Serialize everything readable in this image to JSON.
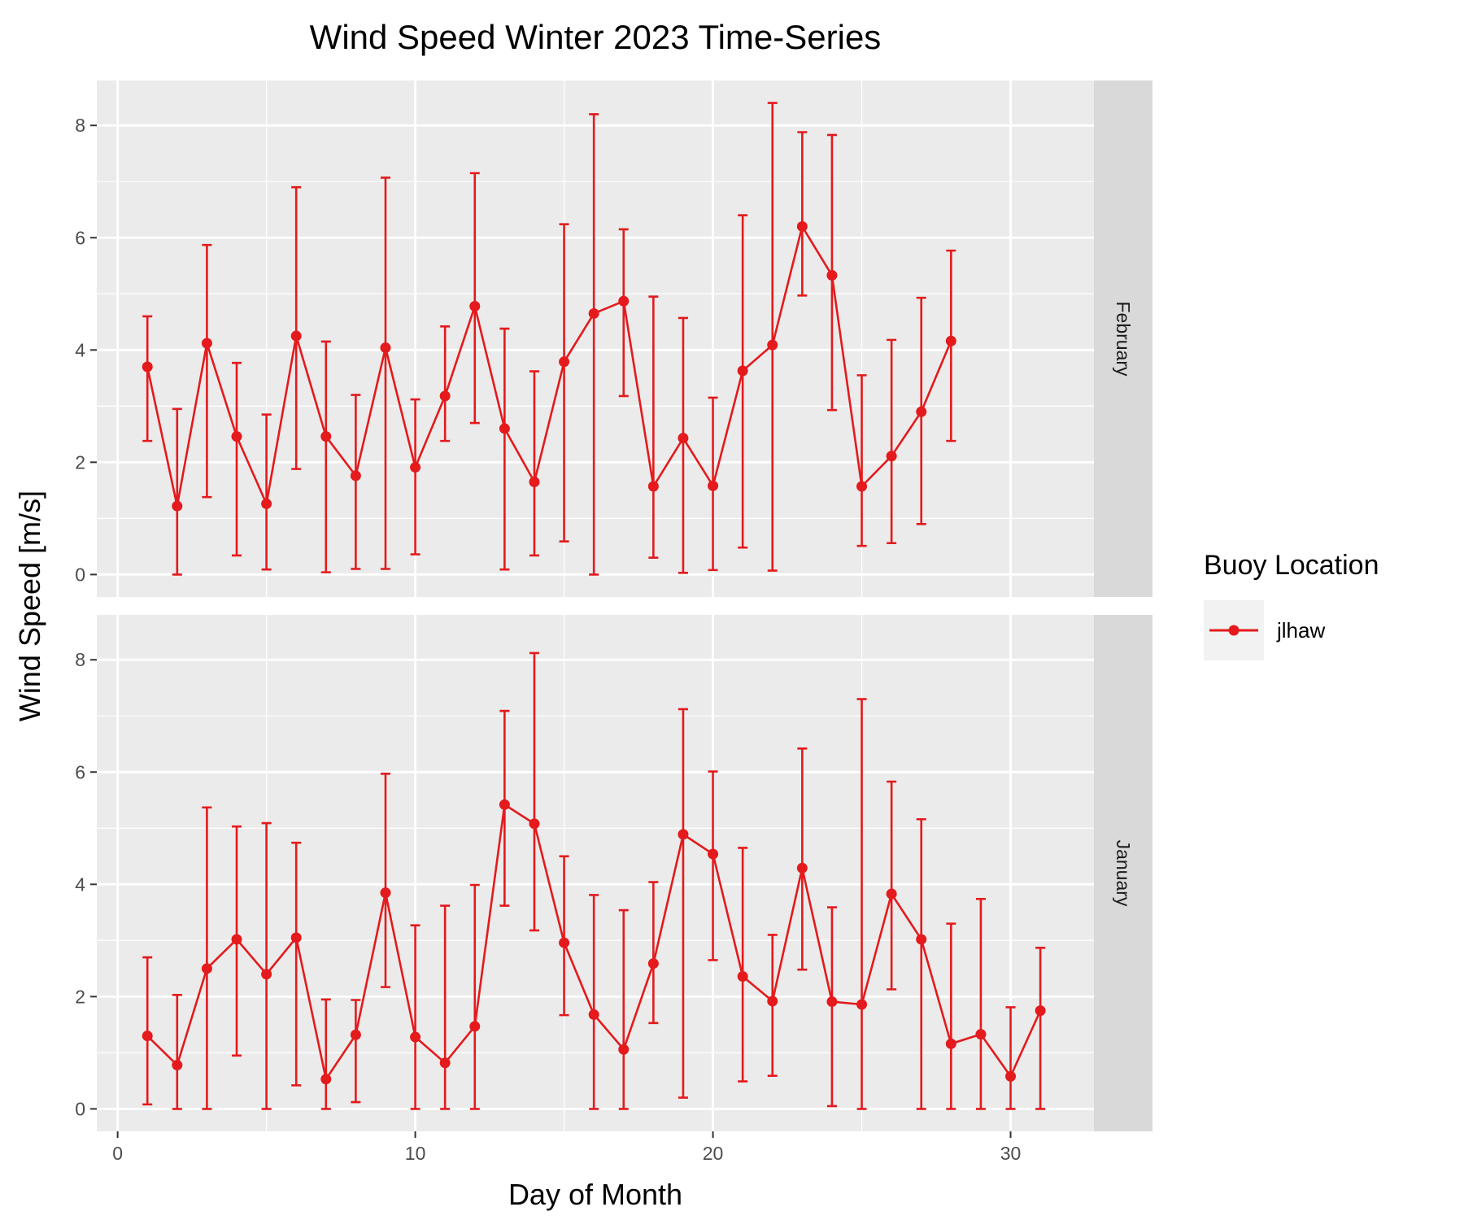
{
  "chart_data": {
    "type": "line",
    "title": "Wind Speed Winter 2023 Time-Series",
    "xlabel": "Day of Month",
    "ylabel": "Wind Speed [m/s]",
    "xlim": [
      -0.7,
      32.8
    ],
    "ylim": [
      -0.4,
      8.8
    ],
    "x_ticks": [
      0,
      10,
      20,
      30
    ],
    "y_ticks": [
      0,
      2,
      4,
      6,
      8
    ],
    "grid": true,
    "legend_position": "right",
    "legend": {
      "title": "Buoy Location",
      "entries": [
        "jlhaw"
      ]
    },
    "colors": {
      "series": "#e41a1c",
      "panel_bg": "#ebebeb",
      "strip_bg": "#d9d9d9",
      "grid": "#ffffff",
      "legend_key_bg": "#f2f2f2"
    },
    "panels": [
      {
        "label": "February",
        "series": [
          {
            "name": "jlhaw",
            "x": [
              1,
              2,
              3,
              4,
              5,
              6,
              7,
              8,
              9,
              10,
              11,
              12,
              13,
              14,
              15,
              16,
              17,
              18,
              19,
              20,
              21,
              22,
              23,
              24,
              25,
              26,
              27,
              28
            ],
            "y": [
              3.7,
              1.22,
              4.12,
              2.46,
              1.26,
              4.25,
              2.46,
              1.76,
              4.04,
              1.91,
              3.18,
              4.78,
              2.6,
              1.65,
              3.79,
              4.65,
              4.87,
              1.57,
              2.43,
              1.58,
              3.63,
              4.09,
              6.2,
              5.33,
              1.57,
              2.11,
              2.9,
              4.16
            ],
            "err_low": [
              2.38,
              0.0,
              1.38,
              0.34,
              0.09,
              1.88,
              0.04,
              0.1,
              0.1,
              0.36,
              2.38,
              2.7,
              0.09,
              0.34,
              0.59,
              0.0,
              3.18,
              0.3,
              0.03,
              0.08,
              0.48,
              0.07,
              4.97,
              2.93,
              0.51,
              0.56,
              0.9,
              2.38
            ],
            "err_high": [
              4.6,
              2.95,
              5.87,
              3.77,
              2.85,
              6.9,
              4.15,
              3.2,
              7.07,
              3.12,
              4.42,
              7.15,
              4.38,
              3.62,
              6.24,
              8.2,
              6.15,
              4.95,
              4.57,
              3.15,
              6.4,
              8.4,
              7.88,
              7.83,
              3.55,
              4.18,
              4.93,
              5.77
            ]
          }
        ]
      },
      {
        "label": "January",
        "series": [
          {
            "name": "jlhaw",
            "x": [
              1,
              2,
              3,
              4,
              5,
              6,
              7,
              8,
              9,
              10,
              11,
              12,
              13,
              14,
              15,
              16,
              17,
              18,
              19,
              20,
              21,
              22,
              23,
              24,
              25,
              26,
              27,
              28,
              29,
              30,
              31
            ],
            "y": [
              1.3,
              0.78,
              2.5,
              3.02,
              2.4,
              3.05,
              0.53,
              1.32,
              3.85,
              1.28,
              0.82,
              1.47,
              5.42,
              5.08,
              2.96,
              1.68,
              1.06,
              2.59,
              4.89,
              4.54,
              2.36,
              1.92,
              4.29,
              1.91,
              1.86,
              3.83,
              3.02,
              1.16,
              1.33,
              0.58,
              1.75
            ],
            "err_low": [
              0.08,
              0.0,
              0.0,
              0.95,
              0.0,
              0.42,
              0.0,
              0.12,
              2.17,
              0.0,
              0.0,
              0.0,
              3.62,
              3.18,
              1.67,
              0.0,
              0.0,
              1.53,
              0.2,
              2.65,
              0.49,
              0.59,
              2.48,
              0.05,
              0.0,
              2.13,
              0.0,
              0.0,
              0.0,
              0.0,
              0.0
            ],
            "err_high": [
              2.7,
              2.03,
              5.37,
              5.03,
              5.09,
              4.74,
              1.95,
              1.94,
              5.97,
              3.27,
              3.62,
              3.99,
              7.09,
              8.12,
              4.5,
              3.81,
              3.54,
              4.04,
              7.12,
              6.01,
              4.65,
              3.1,
              6.42,
              3.59,
              7.3,
              5.83,
              5.16,
              3.3,
              3.74,
              1.81,
              2.87
            ]
          }
        ]
      }
    ]
  }
}
